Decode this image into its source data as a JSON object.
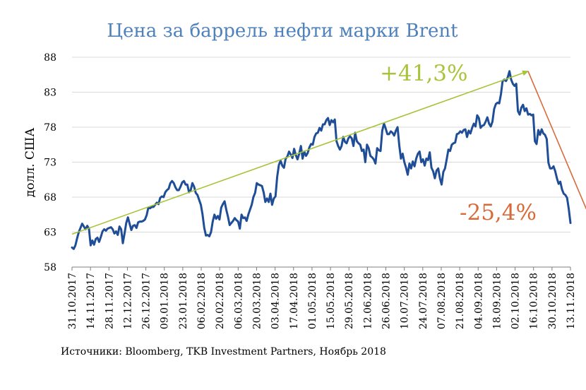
{
  "colors": {
    "title": "#4f81bd",
    "series": "#1f4e96",
    "grid": "#d9d9d9",
    "rise": "#a8c43a",
    "fall": "#d86a3a"
  },
  "source_text": "Источники: Bloomberg, TKB Investment Partners, Ноябрь 2018",
  "annotations": {
    "rise_label": "+41,3%",
    "fall_label": "-25,4%"
  },
  "chart_data": {
    "type": "line",
    "title": "Цена за баррель нефти марки Brent",
    "ylabel": "долл. США",
    "xlabel": "",
    "ylim": [
      58,
      88
    ],
    "yticks": [
      58,
      63,
      68,
      73,
      78,
      83,
      88
    ],
    "grid": true,
    "x_tick_labels": [
      "31.10.2017",
      "14.11.2017",
      "28.11.2017",
      "12.12.2017",
      "26.12.2017",
      "09.01.2018",
      "23.01.2018",
      "06.02.2018",
      "20.02.2018",
      "06.03.2018",
      "20.03.2018",
      "03.04.2018",
      "17.04.2018",
      "01.05.2018",
      "15.05.2018",
      "29.05.2018",
      "12.06.2018",
      "26.06.2018",
      "10.07.2018",
      "24.07.2018",
      "07.08.2018",
      "21.08.2018",
      "04.09.2018",
      "18.09.2018",
      "02.10.2018",
      "16.10.2018",
      "30.10.2018",
      "13.11.2018"
    ],
    "series": [
      {
        "values": [
          60.8,
          60.6,
          61.1,
          62.1,
          63.0,
          63.6,
          64.2,
          63.8,
          63.4,
          63.9,
          63.5,
          61.1,
          61.8,
          61.2,
          62.0,
          62.2,
          61.6,
          62.3,
          63.1,
          63.4,
          63.2,
          63.5,
          63.6,
          63.7,
          63.4,
          62.8,
          63.1,
          62.6,
          63.8,
          63.4,
          61.4,
          62.8,
          64.3,
          65.1,
          64.2,
          63.3,
          63.9,
          64.0,
          63.6,
          64.4,
          64.5,
          64.5,
          64.6,
          64.8,
          65.4,
          66.5,
          66.4,
          66.6,
          66.6,
          66.9,
          67.2,
          67.0,
          67.9,
          68.1,
          68.0,
          68.7,
          69.0,
          69.2,
          70.0,
          70.3,
          70.0,
          69.4,
          69.0,
          69.0,
          69.5,
          70.1,
          70.3,
          69.8,
          69.8,
          68.7,
          69.0,
          70.0,
          69.5,
          68.6,
          68.3,
          67.6,
          66.9,
          65.5,
          63.6,
          62.5,
          62.6,
          62.4,
          63.0,
          64.5,
          65.5,
          64.9,
          65.3,
          64.8,
          66.5,
          67.0,
          67.4,
          66.2,
          65.2,
          64.0,
          64.3,
          64.6,
          65.0,
          64.7,
          64.5,
          63.5,
          65.5,
          65.0,
          65.1,
          64.6,
          65.5,
          66.2,
          66.9,
          68.0,
          68.6,
          70.0,
          69.8,
          69.7,
          69.6,
          68.7,
          67.3,
          67.8,
          67.3,
          68.5,
          66.9,
          67.8,
          68.1,
          70.9,
          72.6,
          73.2,
          72.5,
          72.2,
          73.5,
          73.8,
          74.5,
          74.1,
          73.6,
          74.9,
          74.0,
          73.4,
          74.2,
          75.3,
          73.5,
          74.5,
          73.9,
          74.3,
          75.1,
          75.6,
          75.5,
          76.6,
          77.1,
          77.2,
          77.9,
          77.5,
          78.4,
          78.4,
          79.0,
          79.3,
          78.3,
          79.0,
          78.7,
          79.1,
          76.0,
          75.3,
          74.8,
          75.3,
          76.6,
          75.9,
          75.7,
          76.4,
          76.7,
          76.4,
          75.3,
          77.2,
          76.0,
          75.7,
          75.5,
          74.6,
          74.8,
          73.0,
          75.5,
          75.0,
          73.9,
          73.7,
          73.4,
          72.8,
          75.0,
          74.7,
          74.6,
          77.5,
          78.5,
          77.8,
          77.0,
          77.0,
          77.4,
          77.2,
          76.8,
          77.5,
          78.0,
          75.4,
          73.5,
          74.2,
          73.0,
          72.2,
          71.2,
          72.8,
          72.1,
          73.1,
          72.4,
          73.5,
          74.2,
          74.5,
          73.0,
          73.4,
          72.5,
          73.5,
          73.3,
          74.4,
          72.2,
          71.7,
          70.7,
          71.8,
          72.1,
          70.7,
          69.8,
          71.6,
          72.1,
          73.4,
          74.8,
          74.6,
          75.5,
          75.7,
          75.8,
          77.0,
          77.1,
          77.4,
          77.2,
          77.6,
          77.7,
          76.6,
          77.5,
          77.1,
          77.9,
          78.5,
          78.1,
          79.7,
          79.3,
          77.9,
          78.2,
          78.3,
          78.8,
          79.4,
          78.5,
          78.1,
          78.8,
          80.6,
          81.3,
          81.5,
          81.4,
          82.7,
          84.6,
          84.8,
          84.6,
          85.1,
          86.0,
          84.8,
          84.2,
          83.9,
          84.2,
          80.3,
          79.8,
          80.8,
          81.2,
          80.3,
          80.7,
          79.8,
          79.9,
          79.7,
          79.8,
          76.0,
          75.6,
          77.6,
          76.9,
          77.7,
          77.1,
          76.9,
          76.3,
          72.9,
          72.1,
          72.1,
          72.4,
          71.7,
          70.7,
          69.9,
          70.2,
          69.1,
          68.5,
          68.3,
          67.9,
          66.3,
          64.3
        ]
      }
    ],
    "trend_lines": [
      {
        "name": "rise",
        "from": {
          "x_index": 0,
          "y": 62.7
        },
        "to": {
          "x_index": 269,
          "y": 86.0
        }
      },
      {
        "name": "fall",
        "from": {
          "x_index": 269,
          "y": 86.0
        },
        "to": {
          "x_index": 307,
          "y": 64.2
        }
      }
    ]
  }
}
